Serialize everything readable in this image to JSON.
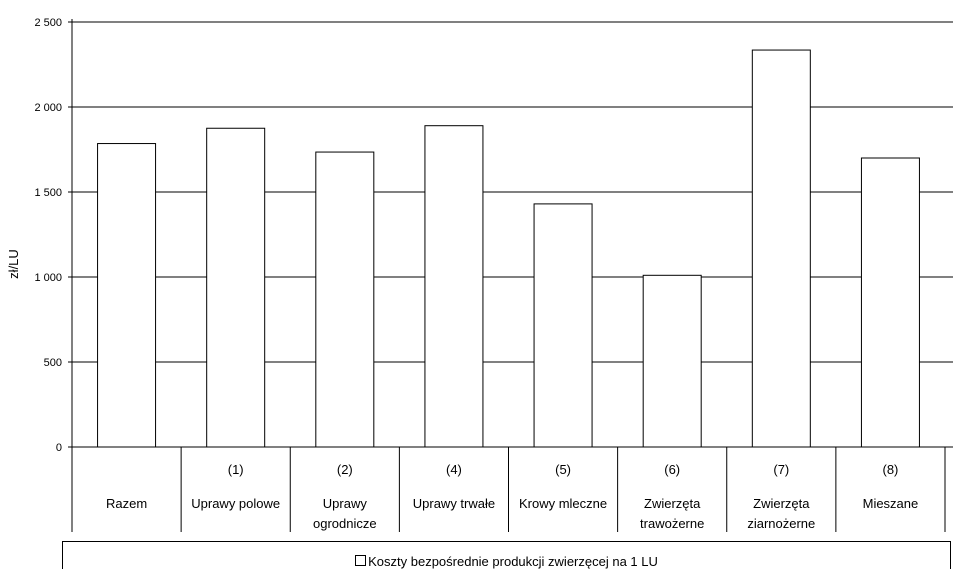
{
  "chart_data": {
    "type": "bar",
    "ylabel": "zł/LU",
    "ylim": [
      0,
      2500
    ],
    "yticks": [
      0,
      500,
      1000,
      1500,
      2000,
      2500
    ],
    "ytick_labels": [
      "0",
      "500",
      "1 000",
      "1 500",
      "2 000",
      "2 500"
    ],
    "grid": true,
    "categories": [
      {
        "code": "",
        "lines": [
          "Razem"
        ]
      },
      {
        "code": "(1)",
        "lines": [
          "Uprawy polowe"
        ]
      },
      {
        "code": "(2)",
        "lines": [
          "Uprawy",
          "ogrodnicze"
        ]
      },
      {
        "code": "(4)",
        "lines": [
          "Uprawy trwałe"
        ]
      },
      {
        "code": "(5)",
        "lines": [
          "Krowy mleczne"
        ]
      },
      {
        "code": "(6)",
        "lines": [
          "Zwierzęta",
          "trawożerne"
        ]
      },
      {
        "code": "(7)",
        "lines": [
          "Zwierzęta",
          "ziarnożerne"
        ]
      },
      {
        "code": "(8)",
        "lines": [
          "Mieszane"
        ]
      }
    ],
    "series": [
      {
        "name": "Koszty bezpośrednie produkcji zwierzęcej na 1 LU",
        "values": [
          1785,
          1875,
          1735,
          1890,
          1430,
          1010,
          2335,
          1700
        ],
        "color": "#ffffff"
      }
    ],
    "legend_position": "bottom"
  }
}
